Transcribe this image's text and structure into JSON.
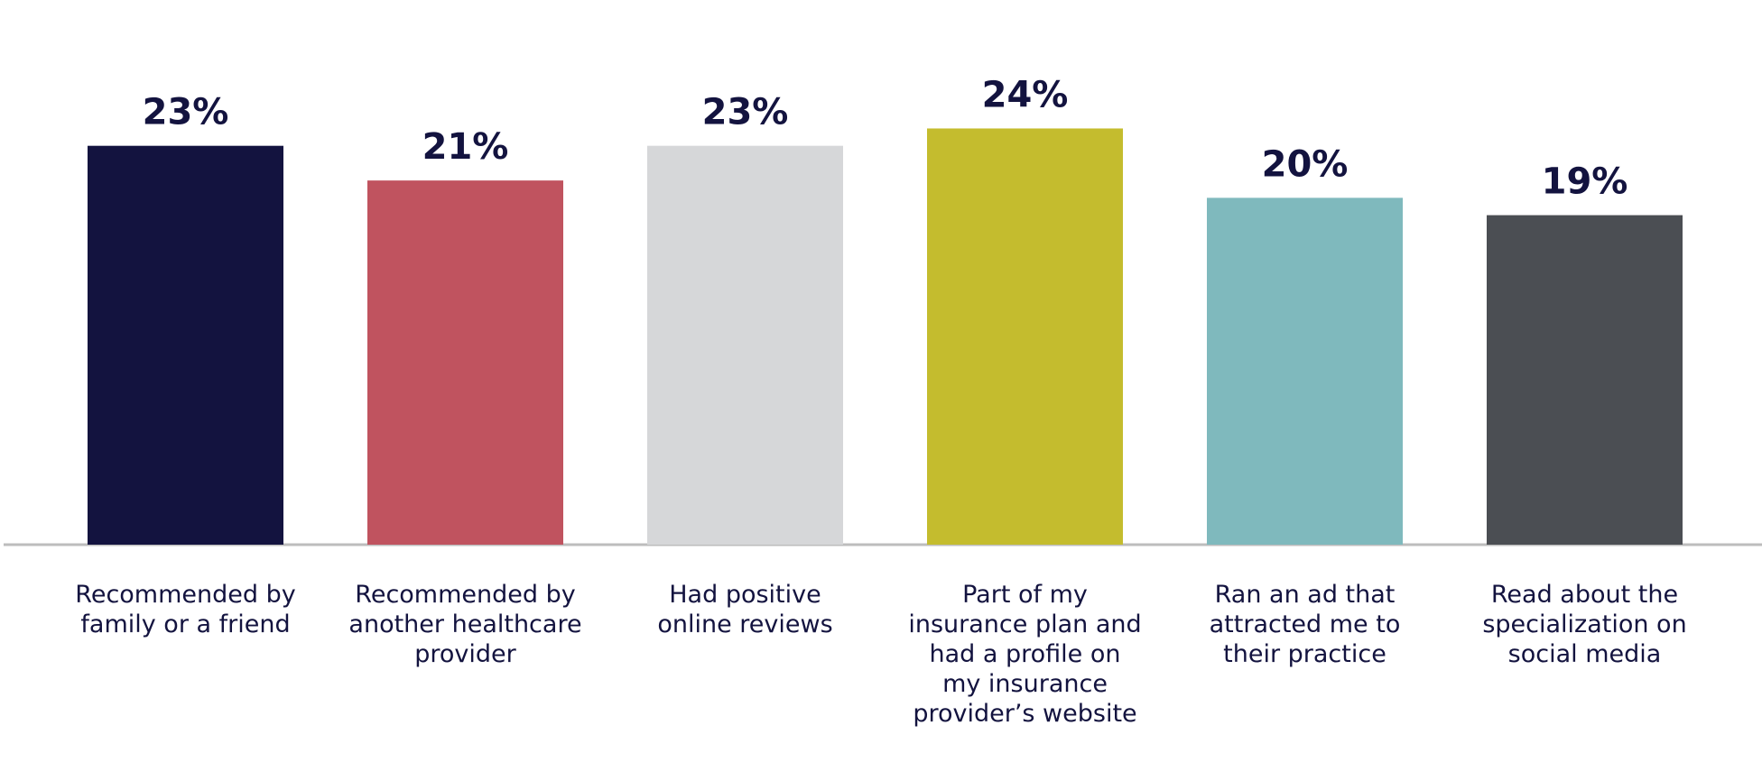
{
  "chart_data": {
    "type": "bar",
    "categories": [
      [
        "Recommended by",
        "family or a friend"
      ],
      [
        "Recommended by",
        "another healthcare",
        "provider"
      ],
      [
        "Had positive",
        "online reviews"
      ],
      [
        "Part of my",
        "insurance plan and",
        "had a profile on",
        "my insurance",
        "provider’s website"
      ],
      [
        "Ran an ad that",
        "attracted me to",
        "their practice"
      ],
      [
        "Read about the",
        "specialization on",
        "social media"
      ]
    ],
    "values": [
      23,
      21,
      23,
      24,
      20,
      19
    ],
    "value_labels": [
      "23%",
      "21%",
      "23%",
      "24%",
      "20%",
      "19%"
    ],
    "colors": [
      "#13133f",
      "#c0535f",
      "#d6d7d9",
      "#c4bc2e",
      "#7fb9bd",
      "#4b4e53"
    ],
    "ylim": [
      0,
      26
    ]
  }
}
